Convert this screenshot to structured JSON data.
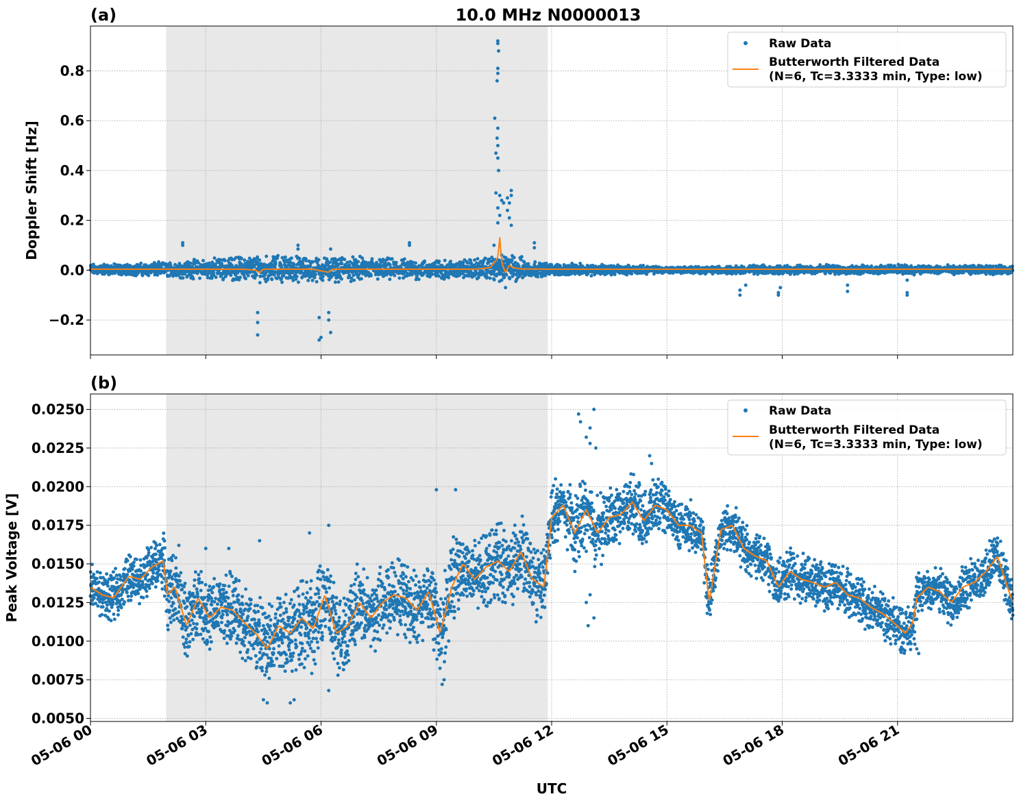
{
  "figure": {
    "title": "10.0 MHz N0000013",
    "xlabel": "UTC",
    "x_ticks": [
      "05-06 00",
      "05-06 03",
      "05-06 06",
      "05-06 09",
      "05-06 12",
      "05-06 15",
      "05-06 18",
      "05-06 21"
    ],
    "colors": {
      "raw": "#1f77b4",
      "filtered": "#ff7f0e",
      "night_shading": "#e8e8e8",
      "grid": "#b0b0b0"
    }
  },
  "chart_data": [
    {
      "panel_label": "(a)",
      "type": "scatter",
      "title": "10.0 MHz N0000013",
      "ylabel": "Doppler Shift [Hz]",
      "xlabel": "",
      "x_unit": "hours UTC since 05-06 00",
      "xlim": [
        0,
        24
      ],
      "ylim": [
        -0.34,
        0.98
      ],
      "y_ticks": [
        -0.2,
        0.0,
        0.2,
        0.4,
        0.6,
        0.8
      ],
      "y_tick_labels": [
        "−0.2",
        "0.0",
        "0.2",
        "0.4",
        "0.6",
        "0.8"
      ],
      "shaded_interval": [
        1.97,
        11.9
      ],
      "grid": true,
      "legend_position": "top-right",
      "legend": [
        "Raw Data",
        "Butterworth Filtered Data",
        "(N=6, Tc=3.3333 min, Type: low)"
      ],
      "raw_envelope": {
        "x": [
          0,
          1,
          2,
          3,
          4,
          5,
          6,
          7,
          8,
          9,
          10,
          10.5,
          11,
          11.5,
          12,
          13,
          14,
          15,
          16,
          17,
          18,
          19,
          20,
          21,
          22,
          23,
          24
        ],
        "upper": [
          0.02,
          0.02,
          0.025,
          0.035,
          0.045,
          0.045,
          0.04,
          0.04,
          0.035,
          0.03,
          0.035,
          0.045,
          0.05,
          0.03,
          0.02,
          0.02,
          0.015,
          0.012,
          0.012,
          0.015,
          0.015,
          0.018,
          0.015,
          0.018,
          0.015,
          0.015,
          0.015
        ],
        "lower": [
          -0.015,
          -0.015,
          -0.02,
          -0.025,
          -0.03,
          -0.035,
          -0.035,
          -0.03,
          -0.03,
          -0.025,
          -0.025,
          -0.03,
          -0.035,
          -0.02,
          -0.015,
          -0.015,
          -0.012,
          -0.01,
          -0.01,
          -0.012,
          -0.012,
          -0.012,
          -0.012,
          -0.012,
          -0.012,
          -0.012,
          -0.012
        ]
      },
      "raw_outliers": [
        {
          "x": 2.4,
          "y": 0.11
        },
        {
          "x": 2.4,
          "y": 0.1
        },
        {
          "x": 4.35,
          "y": -0.17
        },
        {
          "x": 4.35,
          "y": -0.21
        },
        {
          "x": 4.35,
          "y": -0.26
        },
        {
          "x": 5.4,
          "y": 0.1
        },
        {
          "x": 5.4,
          "y": 0.085
        },
        {
          "x": 5.95,
          "y": -0.19
        },
        {
          "x": 6.0,
          "y": -0.27
        },
        {
          "x": 5.95,
          "y": -0.28
        },
        {
          "x": 6.2,
          "y": -0.17
        },
        {
          "x": 6.2,
          "y": -0.2
        },
        {
          "x": 6.25,
          "y": -0.25
        },
        {
          "x": 6.25,
          "y": 0.085
        },
        {
          "x": 8.3,
          "y": 0.11
        },
        {
          "x": 8.3,
          "y": 0.1
        },
        {
          "x": 10.6,
          "y": 0.92
        },
        {
          "x": 10.6,
          "y": 0.91
        },
        {
          "x": 10.62,
          "y": 0.88
        },
        {
          "x": 10.6,
          "y": 0.81
        },
        {
          "x": 10.6,
          "y": 0.79
        },
        {
          "x": 10.58,
          "y": 0.76
        },
        {
          "x": 10.52,
          "y": 0.61
        },
        {
          "x": 10.6,
          "y": 0.57
        },
        {
          "x": 10.58,
          "y": 0.53
        },
        {
          "x": 10.6,
          "y": 0.5
        },
        {
          "x": 10.55,
          "y": 0.47
        },
        {
          "x": 10.6,
          "y": 0.45
        },
        {
          "x": 10.62,
          "y": 0.4
        },
        {
          "x": 10.55,
          "y": 0.31
        },
        {
          "x": 10.65,
          "y": 0.3
        },
        {
          "x": 10.7,
          "y": 0.28
        },
        {
          "x": 10.75,
          "y": 0.27
        },
        {
          "x": 10.6,
          "y": 0.25
        },
        {
          "x": 10.65,
          "y": 0.22
        },
        {
          "x": 10.6,
          "y": 0.19
        },
        {
          "x": 10.85,
          "y": 0.29
        },
        {
          "x": 10.9,
          "y": 0.27
        },
        {
          "x": 10.95,
          "y": 0.32
        },
        {
          "x": 10.95,
          "y": 0.3
        },
        {
          "x": 10.85,
          "y": 0.24
        },
        {
          "x": 10.9,
          "y": 0.21
        },
        {
          "x": 10.95,
          "y": 0.18
        },
        {
          "x": 10.5,
          "y": 0.1
        },
        {
          "x": 10.7,
          "y": -0.04
        },
        {
          "x": 10.8,
          "y": -0.07
        },
        {
          "x": 11.55,
          "y": 0.11
        },
        {
          "x": 11.55,
          "y": 0.09
        },
        {
          "x": 16.9,
          "y": -0.1
        },
        {
          "x": 16.9,
          "y": -0.08
        },
        {
          "x": 17.05,
          "y": -0.06
        },
        {
          "x": 17.9,
          "y": -0.09
        },
        {
          "x": 17.9,
          "y": -0.1
        },
        {
          "x": 17.95,
          "y": -0.07
        },
        {
          "x": 19.7,
          "y": -0.06
        },
        {
          "x": 19.7,
          "y": -0.085
        },
        {
          "x": 21.25,
          "y": -0.04
        },
        {
          "x": 21.25,
          "y": -0.09
        },
        {
          "x": 21.25,
          "y": -0.1
        }
      ],
      "filtered": {
        "x": [
          0,
          2,
          4,
          4.3,
          4.4,
          4.5,
          5.8,
          6.1,
          6.2,
          6.3,
          8,
          10,
          10.4,
          10.6,
          10.65,
          10.7,
          10.8,
          10.9,
          11.0,
          11.2,
          12,
          24
        ],
        "y": [
          0.004,
          0.004,
          0.004,
          0.0,
          -0.01,
          0.004,
          0.004,
          -0.006,
          -0.008,
          0.004,
          0.004,
          0.004,
          0.01,
          0.05,
          0.13,
          0.03,
          -0.01,
          0.02,
          0.01,
          0.005,
          0.004,
          0.004
        ]
      }
    },
    {
      "panel_label": "(b)",
      "type": "scatter",
      "title": "",
      "ylabel": "Peak Voltage [V]",
      "xlabel": "UTC",
      "x_unit": "hours UTC since 05-06 00",
      "xlim": [
        0,
        24
      ],
      "ylim": [
        0.0048,
        0.026
      ],
      "y_ticks": [
        0.005,
        0.0075,
        0.01,
        0.0125,
        0.015,
        0.0175,
        0.02,
        0.0225,
        0.025
      ],
      "y_tick_labels": [
        "0.0050",
        "0.0075",
        "0.0100",
        "0.0125",
        "0.0150",
        "0.0175",
        "0.0200",
        "0.0225",
        "0.0250"
      ],
      "shaded_interval": [
        1.97,
        11.9
      ],
      "grid": true,
      "legend_position": "top-right",
      "legend": [
        "Raw Data",
        "Butterworth Filtered Data",
        "(N=6, Tc=3.3333 min, Type: low)"
      ],
      "filtered": {
        "x": [
          0,
          0.3,
          0.6,
          1.0,
          1.3,
          1.6,
          1.9,
          2.0,
          2.2,
          2.5,
          2.8,
          3.1,
          3.4,
          3.7,
          4.0,
          4.3,
          4.6,
          4.9,
          5.2,
          5.5,
          5.8,
          6.1,
          6.4,
          6.7,
          7.0,
          7.3,
          7.6,
          7.9,
          8.2,
          8.5,
          8.8,
          9.1,
          9.4,
          9.7,
          10.0,
          10.3,
          10.6,
          10.9,
          11.2,
          11.5,
          11.8,
          12.0,
          12.3,
          12.6,
          12.9,
          13.2,
          13.5,
          13.8,
          14.1,
          14.4,
          14.7,
          15.0,
          15.3,
          15.6,
          15.9,
          16.1,
          16.4,
          16.7,
          17.0,
          17.3,
          17.6,
          17.9,
          18.2,
          18.5,
          18.8,
          19.1,
          19.4,
          19.7,
          20.0,
          20.3,
          20.6,
          20.9,
          21.2,
          21.4,
          21.5,
          21.8,
          22.1,
          22.4,
          22.7,
          23.0,
          23.3,
          23.6,
          23.9,
          24.0
        ],
        "y": [
          0.0135,
          0.013,
          0.0128,
          0.0142,
          0.014,
          0.0148,
          0.0152,
          0.013,
          0.0135,
          0.011,
          0.0128,
          0.0115,
          0.0122,
          0.012,
          0.0112,
          0.0105,
          0.0095,
          0.011,
          0.0105,
          0.0115,
          0.0108,
          0.013,
          0.0105,
          0.011,
          0.0125,
          0.0115,
          0.0125,
          0.013,
          0.0128,
          0.012,
          0.0132,
          0.0105,
          0.0135,
          0.015,
          0.014,
          0.0148,
          0.0152,
          0.0145,
          0.0158,
          0.014,
          0.0135,
          0.018,
          0.0188,
          0.017,
          0.0185,
          0.017,
          0.018,
          0.0182,
          0.019,
          0.0178,
          0.0188,
          0.0185,
          0.0175,
          0.0175,
          0.017,
          0.0125,
          0.0172,
          0.0175,
          0.016,
          0.0155,
          0.0152,
          0.0135,
          0.0145,
          0.014,
          0.0138,
          0.0135,
          0.0138,
          0.013,
          0.0128,
          0.0122,
          0.0118,
          0.0112,
          0.0105,
          0.0112,
          0.0128,
          0.0135,
          0.0132,
          0.0125,
          0.0135,
          0.0138,
          0.0145,
          0.0155,
          0.0132,
          0.0125
        ]
      },
      "raw_band_halfwidth": [
        0.0016,
        0.0016,
        0.0016,
        0.0016,
        0.0016,
        0.0016,
        0.0018,
        0.0025,
        0.0025,
        0.0025,
        0.0022,
        0.0025,
        0.0025,
        0.0025,
        0.0025,
        0.0028,
        0.003,
        0.003,
        0.003,
        0.003,
        0.003,
        0.003,
        0.0028,
        0.0028,
        0.0025,
        0.0025,
        0.0025,
        0.0025,
        0.0025,
        0.0025,
        0.0025,
        0.003,
        0.003,
        0.0025,
        0.0025,
        0.0025,
        0.0025,
        0.0025,
        0.0025,
        0.0025,
        0.0025,
        0.002,
        0.002,
        0.0025,
        0.0025,
        0.0025,
        0.002,
        0.002,
        0.002,
        0.0018,
        0.0018,
        0.0016,
        0.0016,
        0.0016,
        0.0016,
        0.002,
        0.0016,
        0.0016,
        0.0016,
        0.0016,
        0.0016,
        0.0016,
        0.0016,
        0.0016,
        0.0016,
        0.0016,
        0.0016,
        0.0016,
        0.0016,
        0.0016,
        0.0016,
        0.0016,
        0.0016,
        0.0016,
        0.0016,
        0.0016,
        0.0016,
        0.0016,
        0.0016,
        0.0016,
        0.0016,
        0.0016,
        0.0016,
        0.0016
      ],
      "raw_outliers": [
        {
          "x": 4.5,
          "y": 0.0062
        },
        {
          "x": 4.6,
          "y": 0.006
        },
        {
          "x": 5.2,
          "y": 0.006
        },
        {
          "x": 5.3,
          "y": 0.0062
        },
        {
          "x": 6.2,
          "y": 0.0068
        },
        {
          "x": 6.2,
          "y": 0.0175
        },
        {
          "x": 9.15,
          "y": 0.0072
        },
        {
          "x": 9.2,
          "y": 0.0075
        },
        {
          "x": 9.0,
          "y": 0.0198
        },
        {
          "x": 9.5,
          "y": 0.0198
        },
        {
          "x": 4.4,
          "y": 0.0165
        },
        {
          "x": 12.7,
          "y": 0.0247
        },
        {
          "x": 12.75,
          "y": 0.0242
        },
        {
          "x": 13.1,
          "y": 0.025
        },
        {
          "x": 13.0,
          "y": 0.0238
        },
        {
          "x": 12.9,
          "y": 0.0232
        },
        {
          "x": 13.0,
          "y": 0.0228
        },
        {
          "x": 13.15,
          "y": 0.0225
        },
        {
          "x": 12.95,
          "y": 0.011
        },
        {
          "x": 13.1,
          "y": 0.0115
        },
        {
          "x": 12.9,
          "y": 0.0125
        },
        {
          "x": 13.0,
          "y": 0.013
        },
        {
          "x": 14.55,
          "y": 0.022
        },
        {
          "x": 14.6,
          "y": 0.0215
        },
        {
          "x": 16.05,
          "y": 0.0118
        },
        {
          "x": 21.5,
          "y": 0.0095
        },
        {
          "x": 21.55,
          "y": 0.0092
        },
        {
          "x": 21.45,
          "y": 0.0098
        },
        {
          "x": 2.3,
          "y": 0.0162
        },
        {
          "x": 3.0,
          "y": 0.016
        },
        {
          "x": 3.6,
          "y": 0.016
        },
        {
          "x": 5.7,
          "y": 0.017
        },
        {
          "x": 6.6,
          "y": 0.0085
        },
        {
          "x": 12.1,
          "y": 0.0205
        },
        {
          "x": 23.4,
          "y": 0.0165
        },
        {
          "x": 23.45,
          "y": 0.0162
        }
      ]
    }
  ]
}
